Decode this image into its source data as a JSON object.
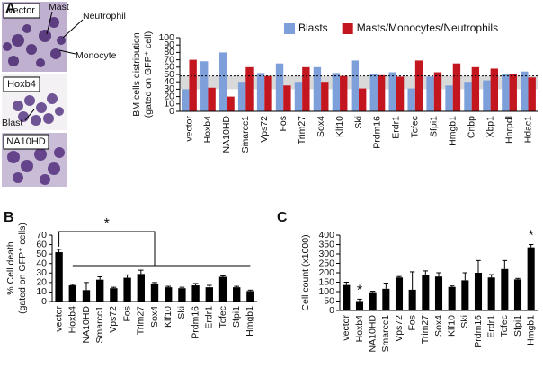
{
  "panels": [
    "A",
    "B",
    "C"
  ],
  "micrographs": {
    "labels": [
      "vector",
      "Hoxb4",
      "NA10HD"
    ],
    "cell_types": [
      "Mast",
      "Neutrophil",
      "Monocyte",
      "Blast"
    ]
  },
  "chart_data": [
    {
      "type": "bar",
      "ylabel": [
        "BM cells distribution",
        "(gated on GFP⁺ cell)"
      ],
      "categories": [
        "vector",
        "Hoxb4",
        "NA10HD",
        "Smarcc1",
        "Vps72",
        "Fos",
        "Trim27",
        "Sox4",
        "Klf10",
        "Ski",
        "Prdm16",
        "Erdr1",
        "Tcfec",
        "Sfpi1",
        "Hmgb1",
        "Cnbp",
        "Xbp1",
        "Hnrpdl",
        "Hdac1"
      ],
      "series": [
        {
          "name": "Blasts",
          "color": "#7d9fda",
          "values": [
            30,
            68,
            80,
            40,
            52,
            65,
            40,
            60,
            52,
            69,
            51,
            53,
            31,
            47,
            35,
            40,
            42,
            50,
            54
          ]
        },
        {
          "name": "Masts/Monocytes/Neutrophils",
          "color": "#c4161f",
          "values": [
            70,
            32,
            20,
            60,
            48,
            35,
            60,
            40,
            48,
            31,
            49,
            47,
            69,
            53,
            65,
            60,
            58,
            50,
            46
          ]
        }
      ],
      "band": [
        30,
        48
      ],
      "ref_line": 48,
      "ylim": [
        0,
        100
      ],
      "yticks": [
        0,
        10,
        20,
        30,
        40,
        50,
        60,
        70,
        80,
        90,
        100
      ],
      "grid": false,
      "legend": "top-right"
    },
    {
      "type": "bar",
      "ylabel": [
        "% Cell death",
        "(gated on GFP⁺ cells)"
      ],
      "categories": [
        "vector",
        "Hoxb4",
        "NA10HD",
        "Smarcc1",
        "Vps72",
        "Fos",
        "Trim27",
        "Sox4",
        "Klf10",
        "Ski",
        "Prdm16",
        "Erdr1",
        "Tcfec",
        "Sfpi1",
        "Hmgb1"
      ],
      "values": [
        52,
        17,
        12,
        23,
        14,
        25,
        29,
        19,
        15,
        14,
        17,
        15,
        26,
        15,
        11
      ],
      "errors": [
        3,
        1,
        8,
        3,
        1,
        3,
        4,
        1,
        1,
        1,
        2,
        2,
        1,
        1,
        1
      ],
      "color": "#000000",
      "bracket": {
        "text": "*"
      },
      "ylim": [
        0,
        70
      ],
      "yticks": [
        0,
        10,
        20,
        30,
        40,
        50,
        60,
        70
      ],
      "grid": false
    },
    {
      "type": "bar",
      "ylabel": [
        "Cell count (x1000)"
      ],
      "categories": [
        "vector",
        "Hoxb4",
        "NA10HD",
        "Smarcc1",
        "Vps72",
        "Fos",
        "Trim27",
        "Sox4",
        "Klf10",
        "Ski",
        "Prdm16",
        "Erdr1",
        "Tcfec",
        "Sfpi1",
        "Hmgb1"
      ],
      "values": [
        135,
        50,
        97,
        115,
        175,
        110,
        190,
        180,
        125,
        160,
        200,
        175,
        220,
        165,
        335
      ],
      "errors": [
        15,
        10,
        5,
        30,
        5,
        95,
        20,
        20,
        5,
        40,
        65,
        15,
        45,
        5,
        15
      ],
      "color": "#000000",
      "annotations": [
        {
          "text": "*",
          "category": "Hoxb4"
        },
        {
          "text": "*",
          "category": "Hmgb1"
        }
      ],
      "ylim": [
        0,
        400
      ],
      "yticks": [
        0,
        50,
        100,
        150,
        200,
        250,
        300,
        350,
        400
      ],
      "grid": false
    }
  ]
}
